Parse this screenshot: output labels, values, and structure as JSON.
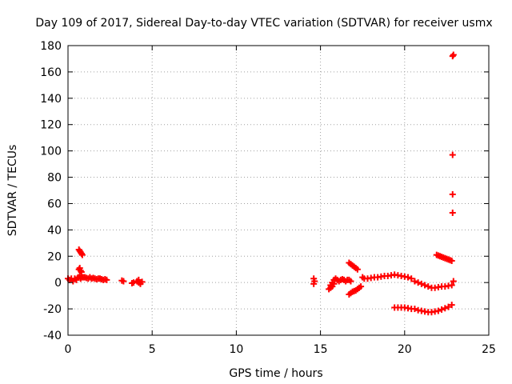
{
  "chart_data": {
    "type": "scatter",
    "title": "Day 109 of 2017, Sidereal Day-to-day VTEC variation (SDTVAR) for receiver usmx",
    "xlabel": "GPS time / hours",
    "ylabel": "SDTVAR / TECUs",
    "xlim": [
      0,
      25
    ],
    "ylim": [
      -40,
      180
    ],
    "xticks": [
      0,
      5,
      10,
      15,
      20,
      25
    ],
    "yticks": [
      -40,
      -20,
      0,
      20,
      40,
      60,
      80,
      100,
      120,
      140,
      160,
      180
    ],
    "grid": true,
    "marker": "plus",
    "color": "#ff0000",
    "series": [
      {
        "name": "SDTVAR",
        "points": [
          [
            0.0,
            3
          ],
          [
            0.1,
            2
          ],
          [
            0.2,
            3
          ],
          [
            0.3,
            1
          ],
          [
            0.4,
            3
          ],
          [
            0.5,
            2
          ],
          [
            0.6,
            4
          ],
          [
            0.7,
            5
          ],
          [
            0.75,
            3
          ],
          [
            0.8,
            4
          ],
          [
            0.65,
            10
          ],
          [
            0.7,
            11
          ],
          [
            0.75,
            9
          ],
          [
            0.8,
            8
          ],
          [
            0.65,
            25
          ],
          [
            0.7,
            24
          ],
          [
            0.75,
            23
          ],
          [
            0.8,
            22
          ],
          [
            0.85,
            21
          ],
          [
            0.9,
            4
          ],
          [
            1.0,
            4
          ],
          [
            1.1,
            3.5
          ],
          [
            1.2,
            3
          ],
          [
            1.3,
            4
          ],
          [
            1.4,
            3
          ],
          [
            1.5,
            3.5
          ],
          [
            1.6,
            3
          ],
          [
            1.7,
            2.5
          ],
          [
            1.8,
            3
          ],
          [
            1.9,
            3
          ],
          [
            2.0,
            2.5
          ],
          [
            2.1,
            2
          ],
          [
            2.2,
            2.5
          ],
          [
            2.3,
            2
          ],
          [
            3.2,
            1.5
          ],
          [
            3.3,
            1
          ],
          [
            3.8,
            -0.5
          ],
          [
            3.9,
            0
          ],
          [
            4.1,
            1
          ],
          [
            4.2,
            0
          ],
          [
            4.3,
            -1
          ],
          [
            4.4,
            0.5
          ],
          [
            4.2,
            2
          ],
          [
            14.6,
            3
          ],
          [
            14.65,
            1
          ],
          [
            14.6,
            -1
          ],
          [
            15.5,
            -5
          ],
          [
            15.6,
            -2
          ],
          [
            15.7,
            0
          ],
          [
            15.8,
            2
          ],
          [
            15.9,
            3
          ],
          [
            15.6,
            -4
          ],
          [
            15.7,
            -3
          ],
          [
            15.8,
            -1
          ],
          [
            16.0,
            2
          ],
          [
            16.1,
            1
          ],
          [
            16.2,
            2
          ],
          [
            16.3,
            2.5
          ],
          [
            16.4,
            2
          ],
          [
            16.5,
            1
          ],
          [
            16.6,
            2
          ],
          [
            16.7,
            2
          ],
          [
            16.8,
            1
          ],
          [
            16.7,
            15
          ],
          [
            16.8,
            14
          ],
          [
            16.9,
            13
          ],
          [
            17.0,
            12
          ],
          [
            17.1,
            11
          ],
          [
            17.2,
            10
          ],
          [
            16.7,
            -9
          ],
          [
            16.8,
            -8
          ],
          [
            16.9,
            -7
          ],
          [
            17.0,
            -6.5
          ],
          [
            17.1,
            -6
          ],
          [
            17.2,
            -5
          ],
          [
            17.3,
            -4
          ],
          [
            17.4,
            -3
          ],
          [
            17.5,
            4
          ],
          [
            17.6,
            3
          ],
          [
            17.8,
            3
          ],
          [
            18.0,
            3.5
          ],
          [
            18.2,
            4
          ],
          [
            18.4,
            4
          ],
          [
            18.6,
            4.5
          ],
          [
            18.8,
            5
          ],
          [
            19.0,
            5
          ],
          [
            19.2,
            5.5
          ],
          [
            19.4,
            6
          ],
          [
            19.6,
            5.5
          ],
          [
            19.8,
            5
          ],
          [
            20.0,
            4.5
          ],
          [
            20.2,
            4
          ],
          [
            20.4,
            3
          ],
          [
            20.6,
            1
          ],
          [
            20.8,
            0
          ],
          [
            21.0,
            -1
          ],
          [
            21.2,
            -2
          ],
          [
            21.4,
            -3
          ],
          [
            21.6,
            -4
          ],
          [
            21.8,
            -4
          ],
          [
            22.0,
            -3.5
          ],
          [
            22.2,
            -3
          ],
          [
            22.4,
            -3
          ],
          [
            22.6,
            -2.5
          ],
          [
            22.8,
            -2
          ],
          [
            19.4,
            -19
          ],
          [
            19.6,
            -19
          ],
          [
            19.8,
            -19
          ],
          [
            20.0,
            -19
          ],
          [
            20.2,
            -19.5
          ],
          [
            20.4,
            -20
          ],
          [
            20.6,
            -20
          ],
          [
            20.8,
            -21
          ],
          [
            21.0,
            -21.5
          ],
          [
            21.2,
            -22
          ],
          [
            21.4,
            -22.5
          ],
          [
            21.6,
            -22.5
          ],
          [
            21.8,
            -22
          ],
          [
            22.0,
            -21.5
          ],
          [
            22.2,
            -20.5
          ],
          [
            22.4,
            -19.5
          ],
          [
            22.6,
            -18.5
          ],
          [
            22.8,
            -17
          ],
          [
            21.9,
            21
          ],
          [
            22.0,
            20.5
          ],
          [
            22.1,
            20
          ],
          [
            22.2,
            19.5
          ],
          [
            22.3,
            19
          ],
          [
            22.4,
            18.5
          ],
          [
            22.5,
            18
          ],
          [
            22.6,
            17.5
          ],
          [
            22.7,
            17
          ],
          [
            22.8,
            16.5
          ],
          [
            22.9,
            1
          ],
          [
            22.85,
            53
          ],
          [
            22.85,
            67
          ],
          [
            22.85,
            97
          ],
          [
            22.85,
            172
          ],
          [
            22.9,
            173
          ]
        ]
      }
    ]
  }
}
